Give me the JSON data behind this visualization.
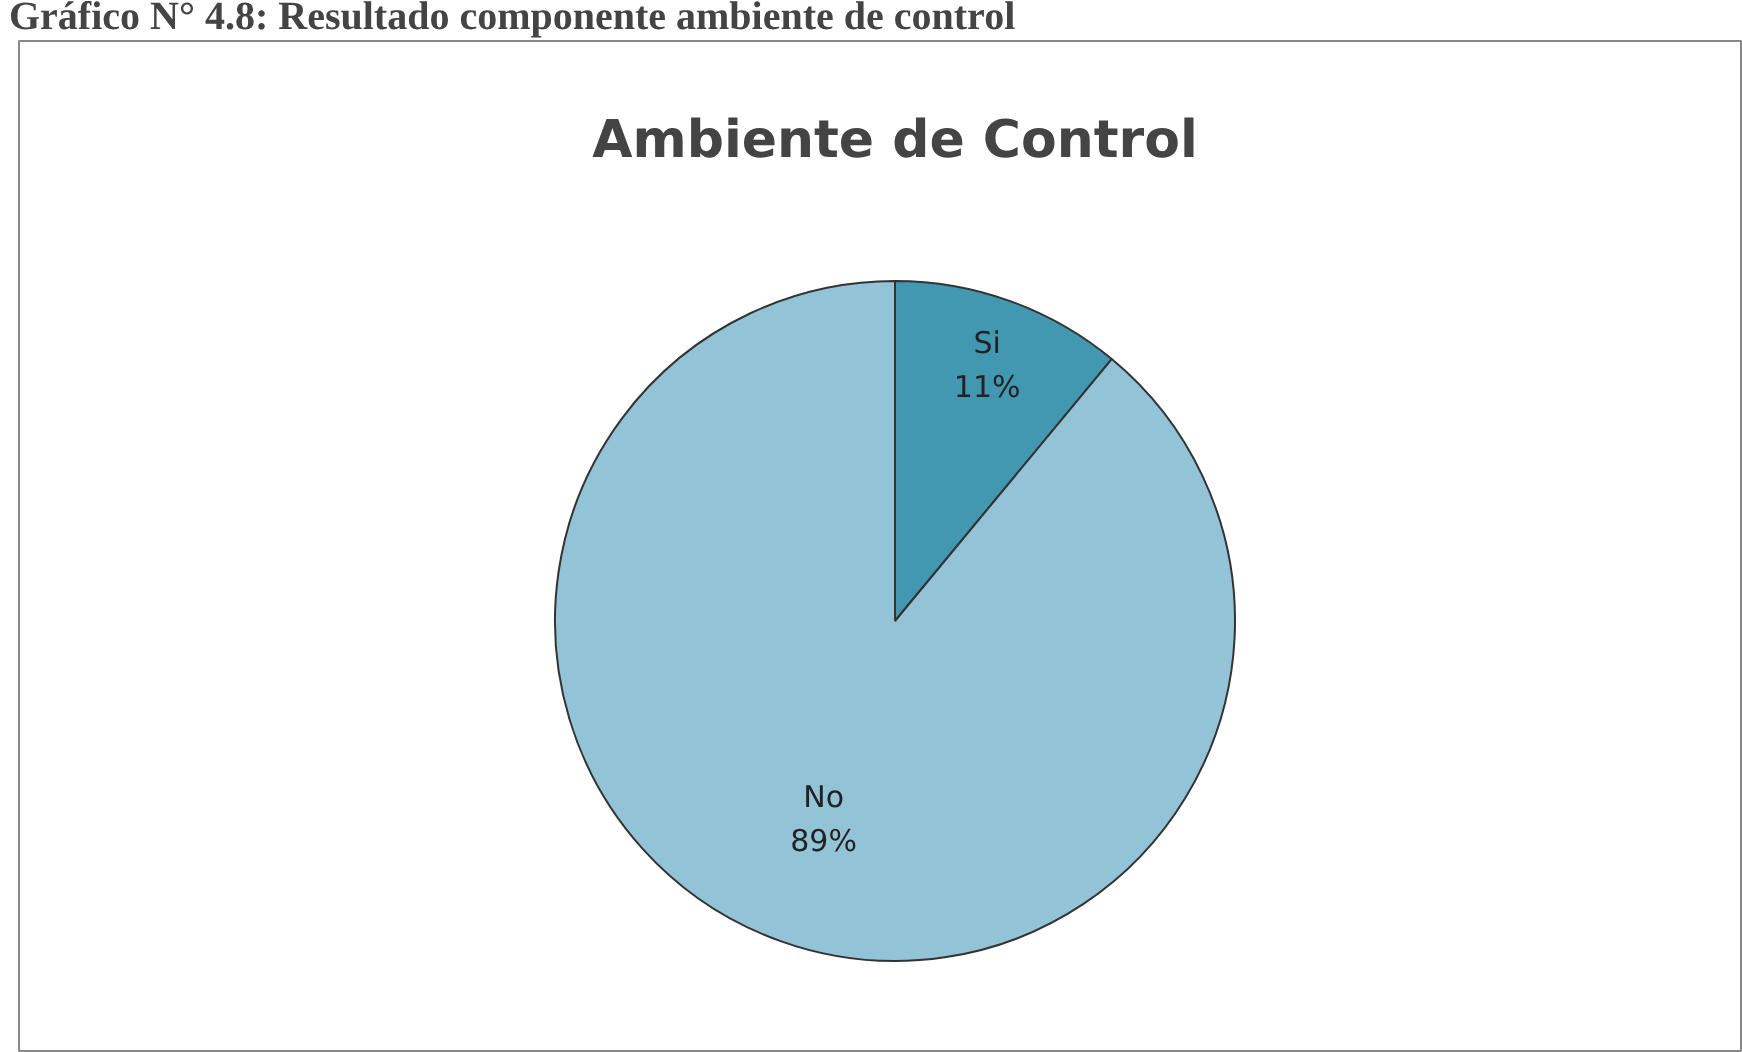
{
  "chart_data": {
    "type": "pie",
    "title": "Ambiente de Control",
    "annotations": [
      "Gráfico N° 4.8: Resultado componente ambiente de control"
    ],
    "categories": [
      "Si",
      "No"
    ],
    "values": [
      11,
      89
    ],
    "colors": [
      "#4198b0",
      "#93c3d6"
    ],
    "value_labels": [
      "11%",
      "89%"
    ]
  }
}
